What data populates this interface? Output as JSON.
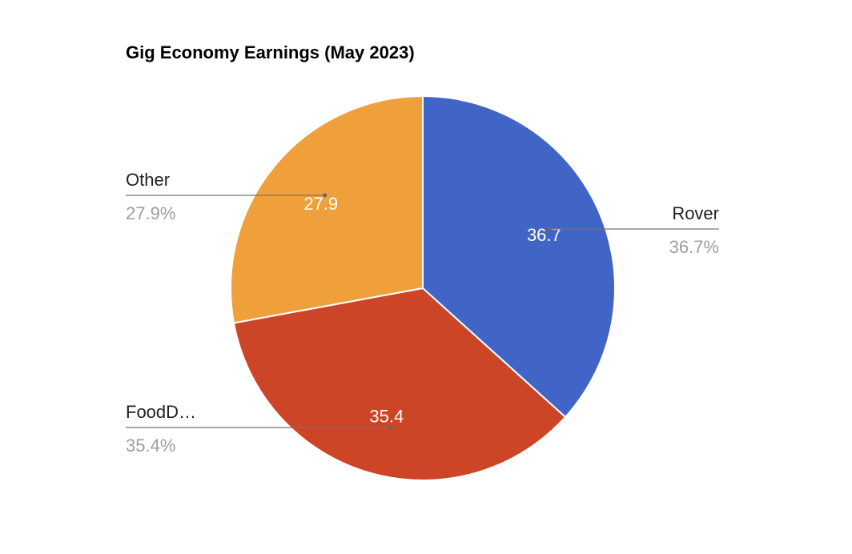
{
  "chart_data": {
    "type": "pie",
    "title": "Gig Economy Earnings (May 2023)",
    "slices": [
      {
        "label": "Rover",
        "display_label": "Rover",
        "value": 36.7,
        "value_text": "36.7",
        "percent_text": "36.7%",
        "color": "#4065c6"
      },
      {
        "label": "FoodDash",
        "display_label": "FoodD…",
        "value": 35.4,
        "value_text": "35.4",
        "percent_text": "35.4%",
        "color": "#cc4526"
      },
      {
        "label": "Other",
        "display_label": "Other",
        "value": 27.9,
        "value_text": "27.9",
        "percent_text": "27.9%",
        "color": "#f0a03a"
      }
    ],
    "legend": "none"
  }
}
